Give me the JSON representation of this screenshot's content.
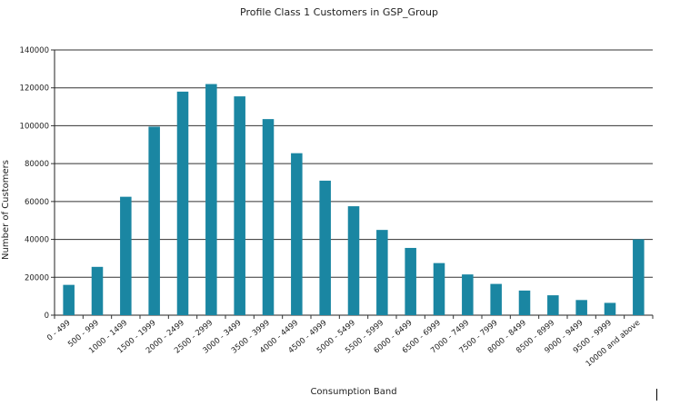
{
  "chart_data": {
    "type": "bar",
    "title": "Profile Class 1 Customers in GSP_Group",
    "xlabel": "Consumption Band",
    "ylabel": "Number of Customers",
    "ylim": [
      0,
      140000
    ],
    "yticks": [
      0,
      20000,
      40000,
      60000,
      80000,
      100000,
      120000,
      140000
    ],
    "ytick_labels": [
      "0",
      "20000",
      "40000",
      "60000",
      "80000",
      "100000",
      "120000",
      "140000"
    ],
    "grid": "horizontal",
    "legend": "none",
    "bar_color": "#1a86a2",
    "categories": [
      "0 - 499",
      "500 - 999",
      "1000 - 1499",
      "1500 - 1999",
      "2000 - 2499",
      "2500 - 2999",
      "3000 - 3499",
      "3500 - 3999",
      "4000 - 4499",
      "4500 - 4999",
      "5000 - 5499",
      "5500 - 5999",
      "6000 - 6499",
      "6500 - 6999",
      "7000 - 7499",
      "7500 - 7999",
      "8000 - 8499",
      "8500 - 8999",
      "9000 - 9499",
      "9500 - 9999",
      "10000 and above"
    ],
    "values": [
      16000,
      25500,
      62500,
      99500,
      118000,
      122000,
      115500,
      103500,
      85500,
      71000,
      57500,
      45000,
      35500,
      27500,
      21500,
      16500,
      13000,
      10500,
      8000,
      6500,
      40000
    ]
  }
}
